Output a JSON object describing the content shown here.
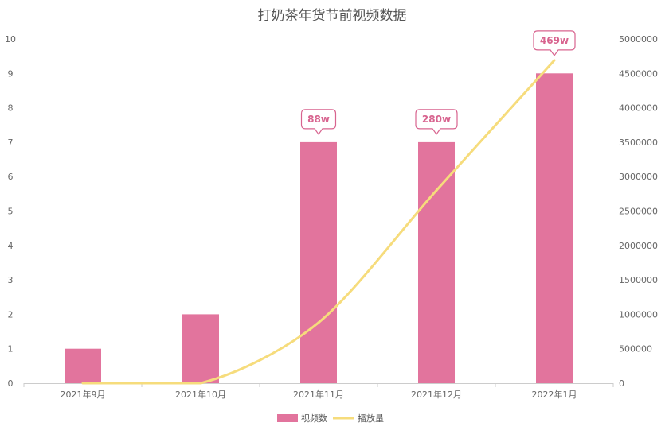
{
  "chart_data": {
    "type": "bar",
    "title": "打奶茶年货节前视频数据",
    "categories": [
      "2021年9月",
      "2021年10月",
      "2021年11月",
      "2021年12月",
      "2022年1月"
    ],
    "series": [
      {
        "name": "视频数",
        "type": "bar",
        "axis": "left",
        "values": [
          1,
          2,
          7,
          7,
          9
        ],
        "color": "#e2749d"
      },
      {
        "name": "播放量",
        "type": "line",
        "axis": "right",
        "values": [
          0,
          0,
          880000,
          2800000,
          4690000
        ],
        "color": "#f6dc7c"
      }
    ],
    "left_axis": {
      "ylim": [
        0,
        10
      ],
      "ticks": [
        0,
        1,
        2,
        3,
        4,
        5,
        6,
        7,
        8,
        9,
        10
      ]
    },
    "right_axis": {
      "ylim": [
        0,
        5000000
      ],
      "ticks": [
        "0",
        "500000",
        "1000000",
        "1500000",
        "2000000",
        "2500000",
        "3000000",
        "3500000",
        "4000000",
        "4500000",
        "5000000"
      ]
    },
    "annotations": [
      {
        "category": "2021年11月",
        "text": "88w"
      },
      {
        "category": "2021年12月",
        "text": "280w"
      },
      {
        "category": "2022年1月",
        "text": "469w"
      }
    ],
    "legend_position": "bottom",
    "grid": false
  }
}
